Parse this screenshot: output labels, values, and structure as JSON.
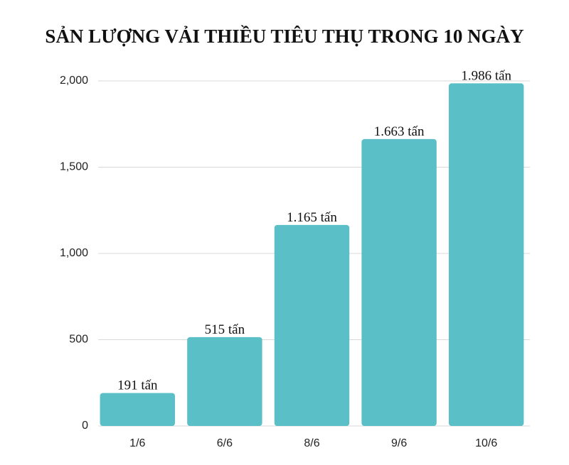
{
  "chart_data": {
    "type": "bar",
    "title": "SẢN LƯỢNG VẢI THIỀU TIÊU THỤ TRONG 10 NGÀY",
    "categories": [
      "1/6",
      "6/6",
      "8/6",
      "9/6",
      "10/6"
    ],
    "values": [
      191,
      515,
      1165,
      1663,
      1986
    ],
    "value_labels": [
      "191 tấn",
      "515 tấn",
      "1.165 tấn",
      "1.663 tấn",
      "1.986 tấn"
    ],
    "color": "#5bbfc8",
    "ylim": [
      0,
      2000
    ],
    "yticks": [
      0,
      500,
      {
        "value": 1000,
        "label": "1,000"
      },
      {
        "value": 1500,
        "label": "1,500"
      },
      {
        "value": 2000,
        "label": "2,000"
      }
    ],
    "grid": true
  }
}
